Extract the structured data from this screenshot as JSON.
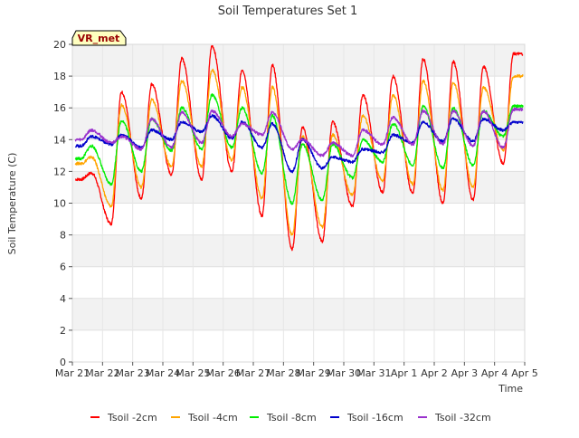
{
  "chart_data": {
    "type": "line",
    "title": "Soil Temperatures Set 1",
    "xlabel": "Time",
    "ylabel": "Soil Temperature (C)",
    "site_label": "VR_met",
    "ylim": [
      0,
      20
    ],
    "yticks": [
      0,
      2,
      4,
      6,
      8,
      10,
      12,
      14,
      16,
      18,
      20
    ],
    "xlim": [
      "2024-03-21",
      "2024-04-05"
    ],
    "xtick_labels": [
      "Mar 21",
      "Mar 22",
      "Mar 23",
      "Mar 24",
      "Mar 25",
      "Mar 26",
      "Mar 27",
      "Mar 28",
      "Mar 29",
      "Mar 30",
      "Mar 31",
      "Apr 1",
      "Apr 2",
      "Apr 3",
      "Apr 4",
      "Apr 5"
    ],
    "grid": true,
    "legend_position": "bottom",
    "x_dates": [
      "2024-03-21",
      "2024-03-22",
      "2024-03-23",
      "2024-03-24",
      "2024-03-25",
      "2024-03-26",
      "2024-03-27",
      "2024-03-28",
      "2024-03-29",
      "2024-03-30",
      "2024-03-31",
      "2024-04-01",
      "2024-04-02",
      "2024-04-03",
      "2024-04-04"
    ],
    "series": [
      {
        "name": "Tsoil -2cm",
        "color": "#ff0000",
        "daily_min": [
          11.5,
          8.7,
          10.3,
          11.8,
          11.5,
          12.0,
          9.2,
          7.1,
          7.6,
          9.8,
          10.7,
          10.6,
          10.0,
          10.2,
          12.5
        ],
        "daily_max": [
          11.9,
          17.0,
          17.5,
          19.1,
          19.9,
          18.4,
          18.7,
          14.8,
          15.1,
          16.8,
          18.0,
          19.1,
          18.9,
          18.6,
          19.4
        ]
      },
      {
        "name": "Tsoil -4cm",
        "color": "#ffa500",
        "daily_min": [
          12.5,
          9.8,
          11.0,
          12.3,
          12.3,
          12.7,
          10.3,
          8.0,
          8.5,
          10.5,
          11.4,
          11.2,
          10.8,
          11.0,
          13.3
        ],
        "daily_max": [
          12.9,
          16.2,
          16.5,
          17.7,
          18.4,
          17.3,
          17.3,
          14.2,
          14.3,
          15.5,
          16.8,
          17.7,
          17.6,
          17.3,
          18.0
        ]
      },
      {
        "name": "Tsoil -8cm",
        "color": "#00ee00",
        "daily_min": [
          12.8,
          11.2,
          12.0,
          13.3,
          13.4,
          13.5,
          11.9,
          10.0,
          10.2,
          11.6,
          12.6,
          12.4,
          12.2,
          12.4,
          14.2
        ],
        "daily_max": [
          13.6,
          15.2,
          15.3,
          16.0,
          16.8,
          16.0,
          15.5,
          13.7,
          13.7,
          14.0,
          15.0,
          16.1,
          16.0,
          15.8,
          16.1
        ]
      },
      {
        "name": "Tsoil -16cm",
        "color": "#0000cc",
        "daily_min": [
          13.6,
          13.7,
          13.5,
          14.0,
          14.5,
          14.1,
          13.5,
          12.0,
          12.2,
          12.6,
          13.2,
          13.8,
          13.9,
          13.9,
          14.6
        ],
        "daily_max": [
          14.2,
          14.3,
          14.6,
          15.1,
          15.5,
          15.1,
          15.0,
          14.0,
          12.9,
          13.4,
          14.3,
          15.1,
          15.3,
          15.3,
          15.1
        ]
      },
      {
        "name": "Tsoil -32cm",
        "color": "#9a32cd",
        "daily_min": [
          14.0,
          13.8,
          13.4,
          13.5,
          13.8,
          14.2,
          14.3,
          13.4,
          13.0,
          13.0,
          13.7,
          13.7,
          13.7,
          13.6,
          13.5
        ],
        "daily_max": [
          14.6,
          14.2,
          15.3,
          15.7,
          15.8,
          15.0,
          15.7,
          14.0,
          13.8,
          14.6,
          15.4,
          15.8,
          15.8,
          15.8,
          15.9
        ]
      }
    ]
  }
}
